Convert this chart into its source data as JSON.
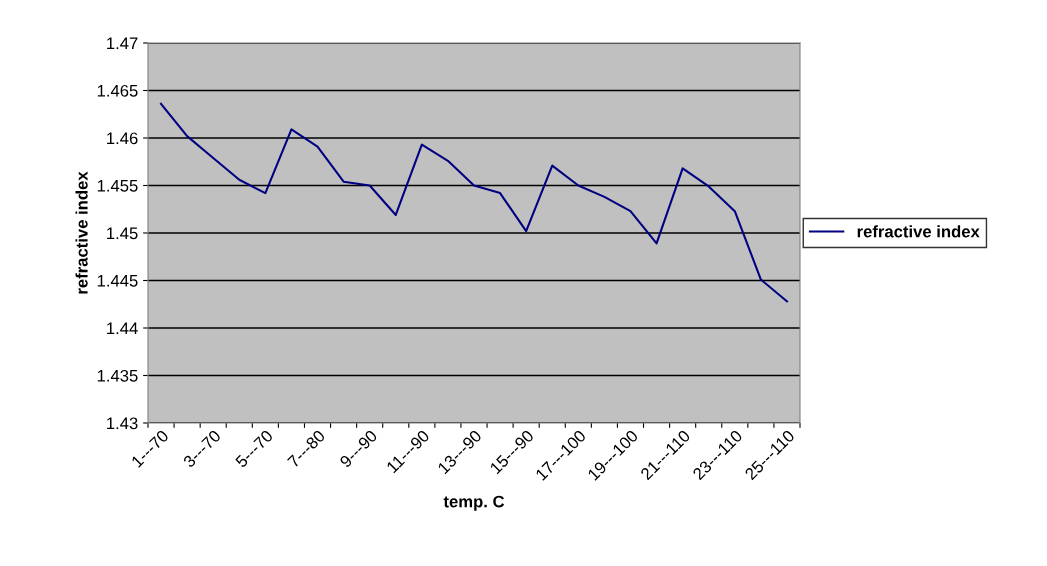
{
  "chart_data": {
    "type": "line",
    "xlabel": "temp. C",
    "ylabel": "refractive index",
    "categories": [
      "1---70",
      null,
      "3---70",
      null,
      "5---70",
      null,
      "7---80",
      null,
      "9---90",
      null,
      "11---90",
      null,
      "13---90",
      null,
      "15---90",
      null,
      "17---100",
      null,
      "19---100",
      null,
      "21---110",
      null,
      "23---110",
      null,
      "25---110"
    ],
    "series": [
      {
        "name": "refractive index",
        "color": "#000080",
        "values": [
          1.4636,
          1.4602,
          1.4579,
          1.4556,
          1.4542,
          1.4609,
          1.4591,
          1.4554,
          1.455,
          1.4519,
          1.4593,
          1.4576,
          1.455,
          1.4542,
          1.4502,
          1.4571,
          1.455,
          1.4538,
          1.4523,
          1.4489,
          1.4568,
          1.4549,
          1.4523,
          1.4451,
          1.4428
        ]
      }
    ],
    "ylim": [
      1.43,
      1.47
    ],
    "yticks": [
      1.43,
      1.435,
      1.44,
      1.445,
      1.45,
      1.455,
      1.46,
      1.465,
      1.47
    ],
    "grid": "y",
    "legend": "right",
    "marker": "none",
    "line_style": "solid"
  }
}
